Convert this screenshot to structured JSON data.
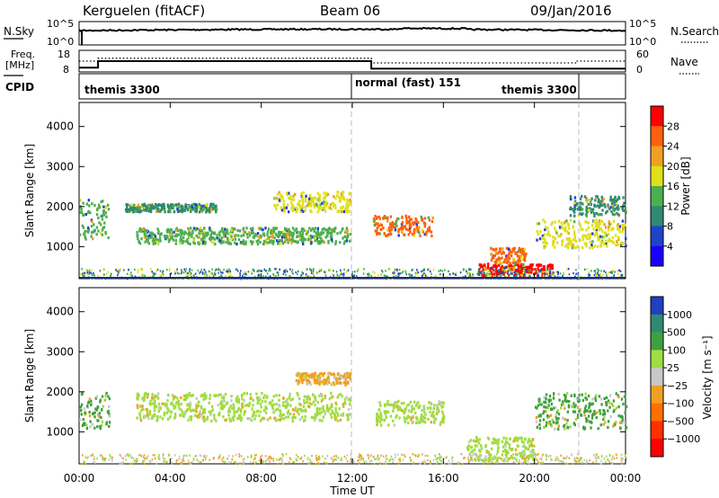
{
  "header": {
    "station": "Kerguelen  (fitACF)",
    "beam": "Beam 06",
    "date": "09/Jan/2016"
  },
  "chart_data": [
    {
      "panel": "noise",
      "type": "line",
      "left_label": "N.Sky",
      "right_label": "N.Search",
      "left_ticks": [
        "10^5",
        "10^0"
      ],
      "right_ticks": [
        "10^5",
        "10^0"
      ],
      "note": "sky noise trace near the top of the log scale with rising trend toward 16:00"
    },
    {
      "panel": "frequency",
      "type": "line",
      "left_label_line1": "Freq.",
      "left_label_line2": "[MHz]",
      "right_label": "Nave",
      "left_ticks": [
        "18",
        "8"
      ],
      "right_ticks": [
        "60",
        "0"
      ],
      "freq_series": {
        "x": [
          "00:00",
          "00:50",
          "00:50",
          "12:50",
          "12:50",
          "24:00"
        ],
        "y": [
          10,
          10,
          13,
          13,
          9.5,
          9.5
        ]
      },
      "nave_series": {
        "x": [
          "00:00",
          "00:50",
          "00:50",
          "12:50",
          "12:50",
          "21:50",
          "21:50",
          "24:00"
        ],
        "y": [
          30,
          30,
          38,
          38,
          25,
          25,
          30,
          30
        ]
      }
    },
    {
      "panel": "cpid",
      "type": "table",
      "label": "CPID",
      "segments": [
        {
          "start": "00:00",
          "name": "themis 3300"
        },
        {
          "start": "12:00",
          "name": "normal (fast) 151"
        },
        {
          "start": "18:00",
          "name": "themis 3300"
        }
      ],
      "dividers": [
        "12:00",
        "22:00"
      ]
    },
    {
      "panel": "power",
      "type": "heatmap",
      "ylabel": "Slant Range [km]",
      "yticks": [
        1000,
        2000,
        3000,
        4000
      ],
      "ylim": [
        200,
        4600
      ],
      "colorbar_label": "Power [dB]",
      "colorbar_ticks": [
        4,
        8,
        12,
        16,
        20,
        24,
        28
      ],
      "colorbar_colors": [
        "#1a00ff",
        "#1f43c8",
        "#2f8a72",
        "#4caf50",
        "#dfe01a",
        "#f0a020",
        "#ff6010",
        "#ff0000"
      ],
      "echo_bands": [
        {
          "t0": 0.0,
          "t1": 1.3,
          "r0": 1200,
          "r1": 2200,
          "level": 12
        },
        {
          "t0": 2.5,
          "t1": 11.9,
          "r0": 1100,
          "r1": 1500,
          "level": 14
        },
        {
          "t0": 2.0,
          "t1": 6.0,
          "r0": 1900,
          "r1": 2100,
          "level": 8
        },
        {
          "t0": 8.5,
          "t1": 11.9,
          "r0": 1900,
          "r1": 2400,
          "level": 16
        },
        {
          "t0": 12.9,
          "t1": 15.5,
          "r0": 1300,
          "r1": 1800,
          "level": 24
        },
        {
          "t0": 17.5,
          "t1": 20.8,
          "r0": 300,
          "r1": 600,
          "level": 28
        },
        {
          "t0": 18.0,
          "t1": 19.6,
          "r0": 600,
          "r1": 1000,
          "level": 26
        },
        {
          "t0": 20.0,
          "t1": 24.0,
          "r0": 1000,
          "r1": 1700,
          "level": 18
        },
        {
          "t0": 21.5,
          "t1": 24.0,
          "r0": 1800,
          "r1": 2300,
          "level": 10
        }
      ]
    },
    {
      "panel": "velocity",
      "type": "heatmap",
      "ylabel": "Slant Range [km]",
      "yticks": [
        1000,
        2000,
        3000,
        4000
      ],
      "ylim": [
        200,
        4600
      ],
      "colorbar_label": "Velocity [m s⁻¹]",
      "colorbar_ticks": [
        "1000",
        "500",
        "100",
        "25",
        "−25",
        "−100",
        "−500",
        "−1000"
      ],
      "colorbar_colors": [
        "#2040c0",
        "#2f8a72",
        "#3fa040",
        "#9fdd40",
        "#c8c8c8",
        "#f0a020",
        "#ff7000",
        "#ff3000",
        "#ff0000"
      ],
      "echo_bands": [
        {
          "t0": 0.0,
          "t1": 1.3,
          "r0": 1100,
          "r1": 2000,
          "level": "100"
        },
        {
          "t0": 2.5,
          "t1": 11.9,
          "r0": 1300,
          "r1": 2000,
          "level": "25"
        },
        {
          "t0": 9.5,
          "t1": 11.9,
          "r0": 2200,
          "r1": 2500,
          "level": "−100"
        },
        {
          "t0": 13.0,
          "t1": 16.0,
          "r0": 1200,
          "r1": 1800,
          "level": "25"
        },
        {
          "t0": 17.0,
          "t1": 20.0,
          "r0": 300,
          "r1": 900,
          "level": "25"
        },
        {
          "t0": 20.0,
          "t1": 24.0,
          "r0": 1100,
          "r1": 2000,
          "level": "100"
        }
      ],
      "xlabel": "Time UT",
      "xticks": [
        "00:00",
        "04:00",
        "08:00",
        "12:00",
        "16:00",
        "20:00",
        "00:00"
      ]
    }
  ]
}
